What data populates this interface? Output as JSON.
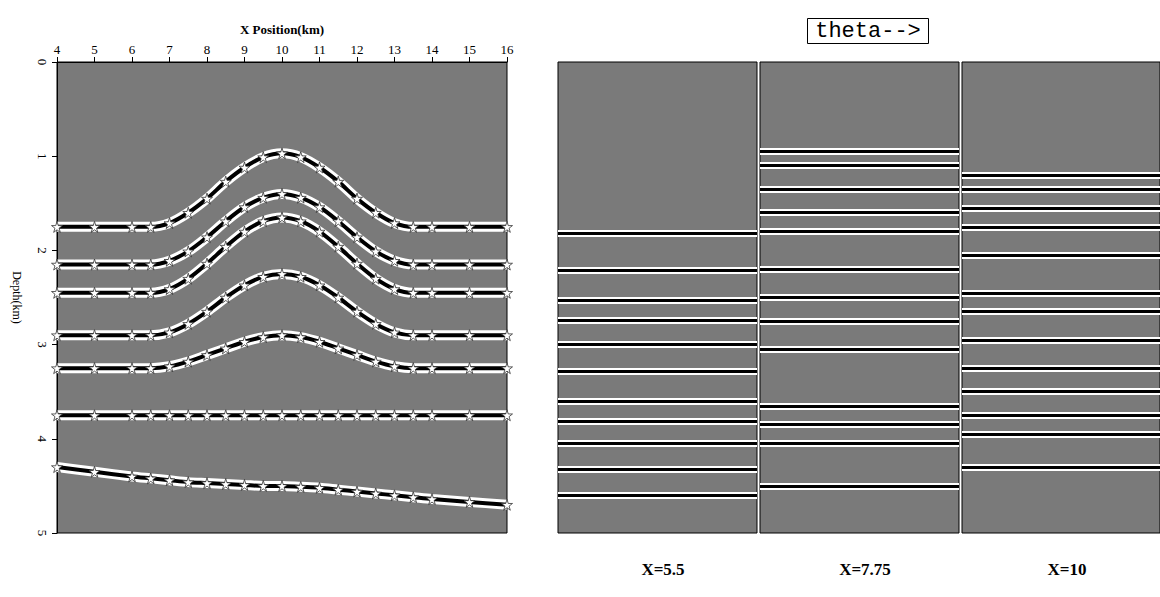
{
  "chart_data": [
    {
      "type": "line",
      "xlabel": "X Position(km)",
      "ylabel": "Depth(km)",
      "xlim": [
        4,
        16
      ],
      "xticks": [
        4,
        5,
        6,
        7,
        8,
        9,
        10,
        11,
        12,
        13,
        14,
        15,
        16
      ],
      "ylim": [
        0,
        5
      ],
      "yticks": [
        0,
        1,
        2,
        3,
        4,
        5
      ],
      "grid": false,
      "x": [
        4,
        5,
        6,
        6.5,
        7,
        7.5,
        8,
        8.5,
        9,
        9.5,
        10,
        10.5,
        11,
        11.5,
        12,
        12.5,
        13,
        13.5,
        14,
        15,
        16
      ],
      "series": [
        {
          "color": "#000000",
          "marker": "star",
          "values": [
            1.75,
            1.75,
            1.75,
            1.75,
            1.71,
            1.6,
            1.45,
            1.27,
            1.12,
            1.01,
            0.97,
            1.01,
            1.12,
            1.27,
            1.45,
            1.6,
            1.71,
            1.75,
            1.75,
            1.75,
            1.75
          ]
        },
        {
          "color": "#000000",
          "marker": "star",
          "values": [
            2.15,
            2.15,
            2.15,
            2.15,
            2.11,
            2.01,
            1.86,
            1.69,
            1.54,
            1.44,
            1.4,
            1.44,
            1.54,
            1.69,
            1.86,
            2.01,
            2.11,
            2.15,
            2.15,
            2.15,
            2.15
          ]
        },
        {
          "color": "#000000",
          "marker": "star",
          "values": [
            2.45,
            2.45,
            2.45,
            2.45,
            2.41,
            2.3,
            2.14,
            1.96,
            1.8,
            1.69,
            1.65,
            1.69,
            1.8,
            1.96,
            2.14,
            2.3,
            2.41,
            2.45,
            2.45,
            2.45,
            2.45
          ]
        },
        {
          "color": "#000000",
          "marker": "star",
          "values": [
            2.9,
            2.9,
            2.9,
            2.9,
            2.87,
            2.78,
            2.65,
            2.5,
            2.37,
            2.28,
            2.25,
            2.28,
            2.37,
            2.5,
            2.65,
            2.78,
            2.87,
            2.9,
            2.9,
            2.9,
            2.9
          ]
        },
        {
          "color": "#000000",
          "marker": "star",
          "values": [
            3.25,
            3.25,
            3.25,
            3.25,
            3.23,
            3.18,
            3.11,
            3.04,
            2.97,
            2.92,
            2.9,
            2.92,
            2.97,
            3.04,
            3.11,
            3.18,
            3.23,
            3.25,
            3.25,
            3.25,
            3.25
          ]
        },
        {
          "color": "#000000",
          "marker": "star",
          "values": [
            3.75,
            3.75,
            3.75,
            3.75,
            3.75,
            3.75,
            3.75,
            3.75,
            3.75,
            3.75,
            3.75,
            3.75,
            3.75,
            3.75,
            3.75,
            3.75,
            3.75,
            3.75,
            3.75,
            3.75,
            3.75
          ]
        },
        {
          "color": "#000000",
          "marker": "star",
          "values": [
            4.3,
            4.35,
            4.4,
            4.42,
            4.44,
            4.46,
            4.47,
            4.48,
            4.49,
            4.5,
            4.5,
            4.51,
            4.52,
            4.54,
            4.56,
            4.58,
            4.6,
            4.62,
            4.64,
            4.67,
            4.7
          ]
        }
      ]
    },
    {
      "type": "gathers",
      "xlabel": "theta-->",
      "ylim": [
        0,
        5
      ],
      "tick_labels": false,
      "color": "#000000",
      "panels": [
        {
          "title": "X=5.5",
          "events": [
            1.82,
            2.21,
            2.53,
            2.74,
            3.0,
            3.28,
            3.6,
            3.81,
            4.05,
            4.32,
            4.6
          ]
        },
        {
          "title": "X=7.75",
          "events": [
            0.95,
            1.1,
            1.35,
            1.6,
            1.8,
            2.2,
            2.5,
            2.75,
            3.05,
            3.65,
            3.85,
            4.05,
            4.5
          ]
        },
        {
          "title": "X=10",
          "events": [
            1.2,
            1.35,
            1.55,
            1.75,
            2.05,
            2.45,
            2.65,
            2.95,
            3.25,
            3.5,
            3.75,
            3.95,
            4.3
          ]
        }
      ]
    }
  ]
}
